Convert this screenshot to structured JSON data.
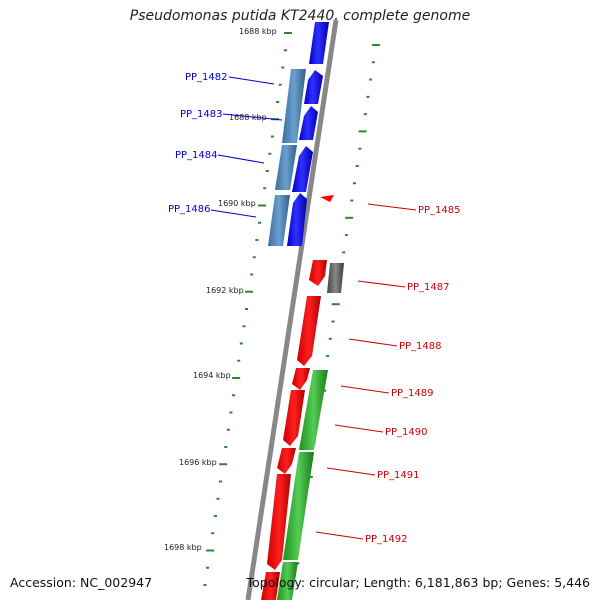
{
  "header": {
    "title": "Pseudomonas putida KT2440, complete genome"
  },
  "footer": {
    "accession": "Accession: NC_002947",
    "topology": "Topology: circular; Length: 6,181,863 bp; Genes: 5,446"
  },
  "scale_labels": [
    "1688 kbp",
    "1688 kbp",
    "1690 kbp",
    "1692 kbp",
    "1694 kbp",
    "1696 kbp",
    "1698 kbp"
  ],
  "genes_left": [
    "PP_1482",
    "PP_1483",
    "PP_1484",
    "PP_1486"
  ],
  "genes_right": [
    "PP_1485",
    "PP_1487",
    "PP_1488",
    "PP_1489",
    "PP_1490",
    "PP_1491",
    "PP_1492"
  ],
  "colors": {
    "forward_cds": "#0000ff",
    "forward_gene": "#4f87b8",
    "reverse_cds": "#ff0000",
    "reverse_gene_green": "#2eaa2e",
    "gray_gene": "#666666",
    "backbone": "#888888",
    "tick": "#2a8a2a",
    "left_label": "#0000cc",
    "right_label": "#cc0000"
  }
}
